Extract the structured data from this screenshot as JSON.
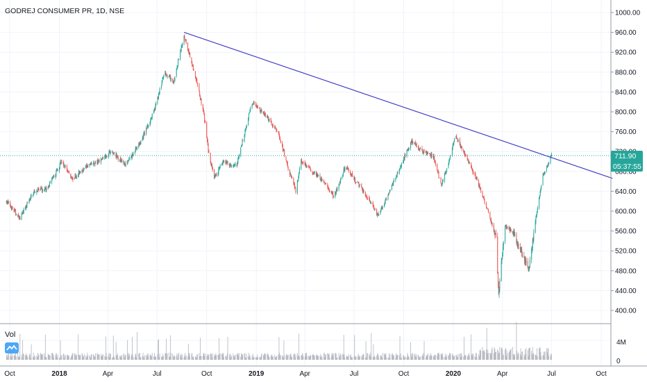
{
  "header": {
    "title": "GODREJ CONSUMER PR, 1D, NSE"
  },
  "price_tag": {
    "price": "711.90",
    "countdown": "05:37:55",
    "color": "#26a69a"
  },
  "volume_pane": {
    "label": "Vol",
    "ticks": [
      "4M",
      "0"
    ]
  },
  "colors": {
    "up": "#26a69a",
    "down": "#ef5350",
    "trendline": "#3f3fc6",
    "grid": "#f0f3fa",
    "axis": "#9598a1"
  },
  "chart_data": {
    "type": "candlestick",
    "title": "GODREJ CONSUMER PR, 1D, NSE",
    "x_ticks": [
      {
        "label": "Oct",
        "date": "2017-10-01",
        "bold": false
      },
      {
        "label": "2018",
        "date": "2018-01-01",
        "bold": true
      },
      {
        "label": "Apr",
        "date": "2018-04-01",
        "bold": false
      },
      {
        "label": "Jul",
        "date": "2018-07-01",
        "bold": false
      },
      {
        "label": "Oct",
        "date": "2018-10-01",
        "bold": false
      },
      {
        "label": "2019",
        "date": "2019-01-01",
        "bold": true
      },
      {
        "label": "Apr",
        "date": "2019-04-01",
        "bold": false
      },
      {
        "label": "Jul",
        "date": "2019-07-01",
        "bold": false
      },
      {
        "label": "Oct",
        "date": "2019-10-01",
        "bold": false
      },
      {
        "label": "2020",
        "date": "2020-01-01",
        "bold": true
      },
      {
        "label": "Apr",
        "date": "2020-04-01",
        "bold": false
      },
      {
        "label": "Jul",
        "date": "2020-07-01",
        "bold": false
      },
      {
        "label": "Oct",
        "date": "2020-10-01",
        "bold": false
      }
    ],
    "y_ticks": [
      "1000.00",
      "960.00",
      "920.00",
      "880.00",
      "840.00",
      "800.00",
      "760.00",
      "720.00",
      "680.00",
      "640.00",
      "600.00",
      "560.00",
      "520.00",
      "480.00",
      "440.00",
      "400.00"
    ],
    "ylim": [
      400,
      1000
    ],
    "last_price": 711.9,
    "trendline": {
      "from": {
        "date": "2018-08-20",
        "price": 960
      },
      "to": {
        "date": "2020-10-22",
        "price": 666
      }
    },
    "price_path": [
      [
        "2017-09-25",
        620
      ],
      [
        "2017-10-20",
        585
      ],
      [
        "2017-11-15",
        640
      ],
      [
        "2017-12-10",
        645
      ],
      [
        "2018-01-05",
        700
      ],
      [
        "2018-01-25",
        665
      ],
      [
        "2018-02-20",
        690
      ],
      [
        "2018-03-15",
        700
      ],
      [
        "2018-04-05",
        720
      ],
      [
        "2018-05-05",
        695
      ],
      [
        "2018-06-01",
        740
      ],
      [
        "2018-06-25",
        800
      ],
      [
        "2018-07-15",
        880
      ],
      [
        "2018-08-01",
        860
      ],
      [
        "2018-08-20",
        955
      ],
      [
        "2018-09-10",
        870
      ],
      [
        "2018-09-25",
        800
      ],
      [
        "2018-10-05",
        715
      ],
      [
        "2018-10-15",
        665
      ],
      [
        "2018-11-01",
        700
      ],
      [
        "2018-11-25",
        690
      ],
      [
        "2018-12-15",
        780
      ],
      [
        "2018-12-25",
        820
      ],
      [
        "2019-01-20",
        790
      ],
      [
        "2019-02-10",
        760
      ],
      [
        "2019-02-28",
        690
      ],
      [
        "2019-03-15",
        640
      ],
      [
        "2019-03-25",
        700
      ],
      [
        "2019-04-15",
        680
      ],
      [
        "2019-05-05",
        660
      ],
      [
        "2019-05-25",
        630
      ],
      [
        "2019-06-15",
        690
      ],
      [
        "2019-07-05",
        660
      ],
      [
        "2019-07-25",
        630
      ],
      [
        "2019-08-15",
        590
      ],
      [
        "2019-09-05",
        640
      ],
      [
        "2019-09-25",
        690
      ],
      [
        "2019-10-15",
        740
      ],
      [
        "2019-11-05",
        720
      ],
      [
        "2019-11-25",
        710
      ],
      [
        "2019-12-10",
        650
      ],
      [
        "2020-01-05",
        750
      ],
      [
        "2020-01-25",
        710
      ],
      [
        "2020-02-15",
        660
      ],
      [
        "2020-03-05",
        600
      ],
      [
        "2020-03-20",
        550
      ],
      [
        "2020-03-25",
        430
      ],
      [
        "2020-04-05",
        570
      ],
      [
        "2020-04-20",
        560
      ],
      [
        "2020-05-05",
        520
      ],
      [
        "2020-05-20",
        480
      ],
      [
        "2020-06-01",
        580
      ],
      [
        "2020-06-15",
        670
      ],
      [
        "2020-07-01",
        712
      ]
    ],
    "volume_ylim": [
      0,
      7
    ]
  }
}
